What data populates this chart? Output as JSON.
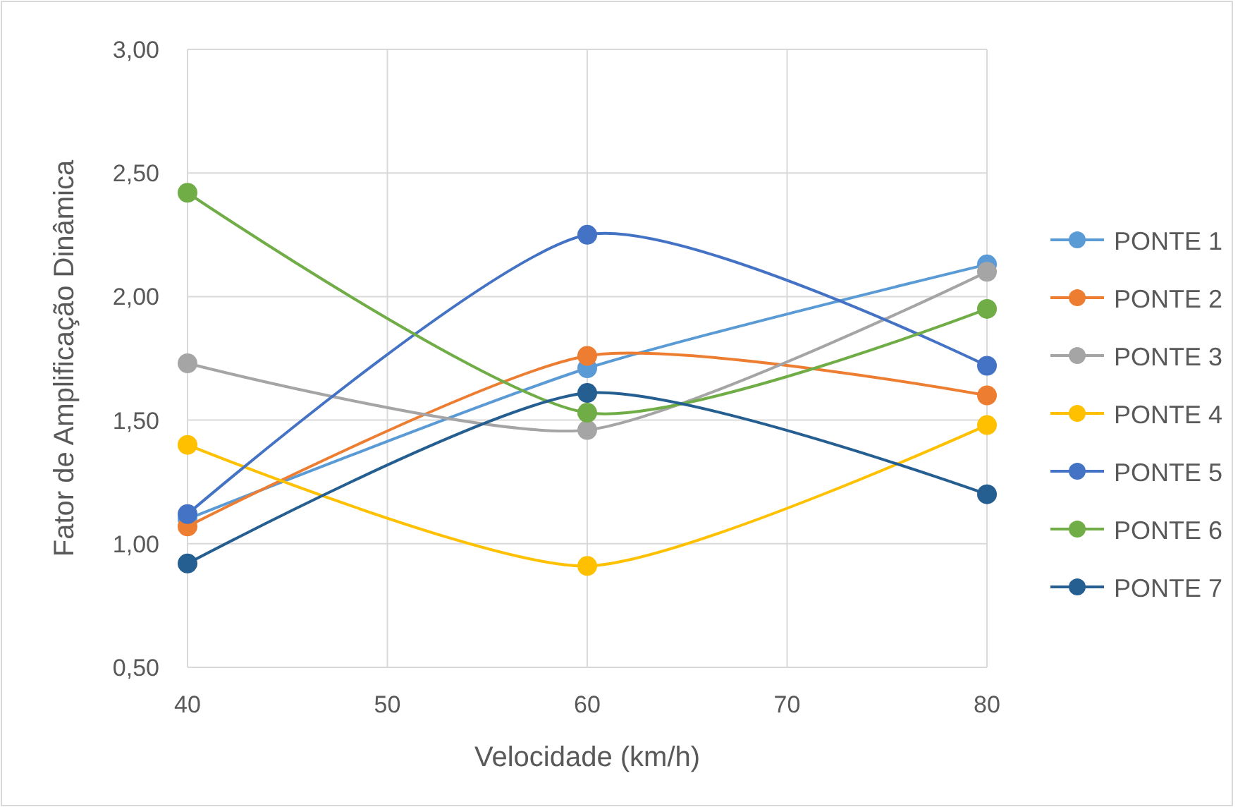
{
  "chart_data": {
    "type": "line",
    "xlabel": "Velocidade (km/h)",
    "ylabel": "Fator de Amplificação Dinâmica",
    "x": [
      40,
      60,
      80
    ],
    "xlim": [
      40,
      80
    ],
    "xticks": [
      40,
      50,
      60,
      70,
      80
    ],
    "ylim": [
      0.5,
      3
    ],
    "yticks": [
      {
        "value": 0.5,
        "label": "0,50"
      },
      {
        "value": 1,
        "label": "1,00"
      },
      {
        "value": 1.5,
        "label": "1,50"
      },
      {
        "value": 2,
        "label": "2,00"
      },
      {
        "value": 2.5,
        "label": "2,50"
      },
      {
        "value": 3,
        "label": "3,00"
      }
    ],
    "grid": true,
    "legend": "right",
    "marker": "circle",
    "line_style": "solid",
    "series": [
      {
        "name": "PONTE 1",
        "color": "#5b9bd5",
        "values": [
          1.1,
          1.71,
          2.13
        ]
      },
      {
        "name": "PONTE 2",
        "color": "#ed7d31",
        "values": [
          1.07,
          1.76,
          1.6
        ]
      },
      {
        "name": "PONTE 3",
        "color": "#a5a5a5",
        "values": [
          1.73,
          1.46,
          2.1
        ]
      },
      {
        "name": "PONTE 4",
        "color": "#ffc000",
        "values": [
          1.4,
          0.91,
          1.48
        ]
      },
      {
        "name": "PONTE 5",
        "color": "#4472c4",
        "values": [
          1.12,
          2.25,
          1.72
        ]
      },
      {
        "name": "PONTE 6",
        "color": "#70ad47",
        "values": [
          2.42,
          1.53,
          1.95
        ]
      },
      {
        "name": "PONTE 7",
        "color": "#255e91",
        "values": [
          0.92,
          1.61,
          1.2
        ]
      }
    ]
  }
}
